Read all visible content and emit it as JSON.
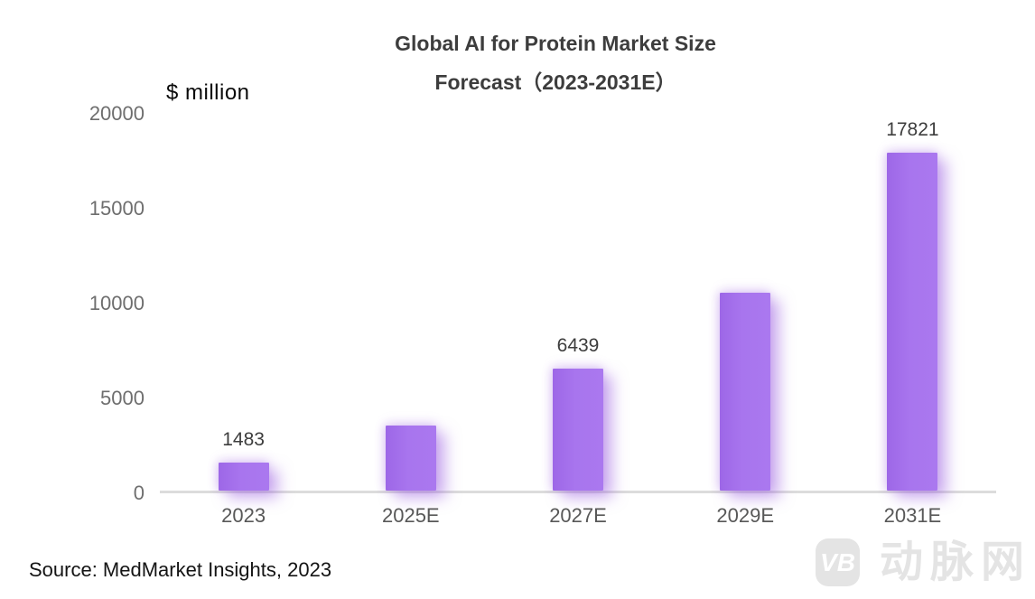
{
  "chart_data": {
    "type": "bar",
    "title_line1": "Global AI for Protein Market Size",
    "title_line2": "Forecast（2023-2031E）",
    "ylabel": "$ million",
    "categories": [
      "2023",
      "2025E",
      "2027E",
      "2029E",
      "2031E"
    ],
    "values": [
      1483,
      3430,
      6439,
      10430,
      17821
    ],
    "data_labels": [
      "1483",
      null,
      "6439",
      null,
      "17821"
    ],
    "yticks": [
      0,
      5000,
      10000,
      15000,
      20000
    ],
    "ylim": [
      0,
      20000
    ],
    "bar_color": "#a873ee",
    "axis_line_color": "#dcdcdc",
    "grid": false,
    "legend": false
  },
  "source_note": "Source: MedMarket Insights, 2023",
  "watermark": {
    "logo_text": "VB",
    "text": "动脉网"
  }
}
